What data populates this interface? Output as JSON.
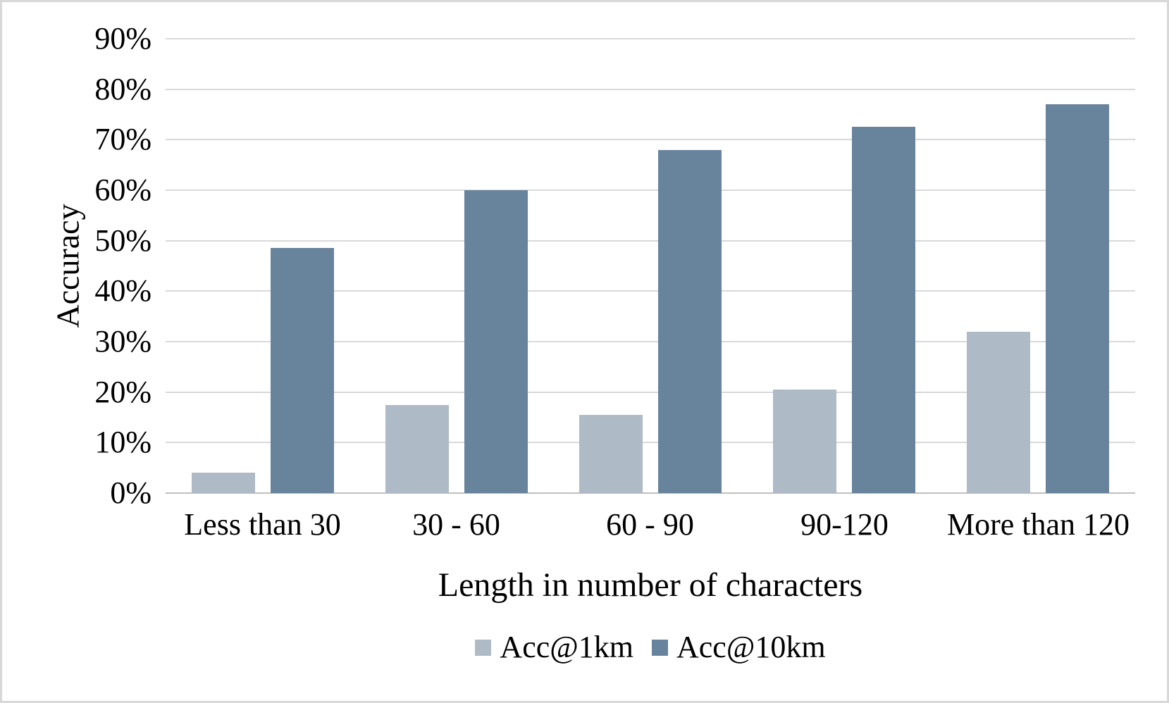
{
  "chart_data": {
    "type": "bar",
    "title": "",
    "categories": [
      "Less than 30",
      "30 - 60",
      "60 - 90",
      "90-120",
      "More than 120"
    ],
    "series": [
      {
        "name": "Acc@1km",
        "color": "#AEBAC6",
        "values": [
          4,
          17.5,
          15.5,
          20.5,
          32
        ]
      },
      {
        "name": "Acc@10km",
        "color": "#68839C",
        "values": [
          48.5,
          60,
          68,
          72.5,
          77
        ]
      }
    ],
    "xlabel": "Length in number of characters",
    "ylabel": "Accuracy",
    "ylim": [
      0,
      90
    ],
    "ytick_step": 10,
    "ytick_suffix": "%",
    "ytick_labels": [
      "0%",
      "10%",
      "20%",
      "30%",
      "40%",
      "50%",
      "60%",
      "70%",
      "80%",
      "90%"
    ],
    "grid": true,
    "legend_position": "bottom"
  },
  "colors": {
    "gridline": "#D9D9D9",
    "axis_line": "#BFBFBF",
    "text": "#000000",
    "frame_border": "#D8D8D8",
    "background": "#FFFFFF"
  }
}
